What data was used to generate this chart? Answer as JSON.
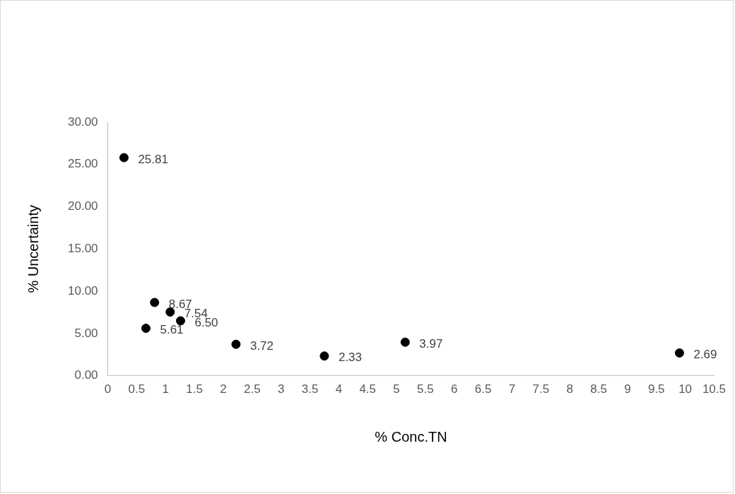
{
  "chart_data": {
    "type": "scatter",
    "xlabel": "% Conc.TN",
    "ylabel": "% Uncertainty",
    "x": [
      0.28,
      0.81,
      0.66,
      1.08,
      1.26,
      2.22,
      3.75,
      5.15,
      9.9
    ],
    "values": [
      25.81,
      8.67,
      5.61,
      7.54,
      6.5,
      3.72,
      2.33,
      3.97,
      2.69
    ],
    "value_labels": [
      "25.81",
      "8.67",
      "5.61",
      "7.54",
      "6.50",
      "3.72",
      "2.33",
      "3.97",
      "2.69"
    ],
    "color": "#000000",
    "marker": "circle",
    "xlim": [
      0,
      10.5
    ],
    "xticks": [
      0,
      0.5,
      1,
      1.5,
      2,
      2.5,
      3,
      3.5,
      4,
      4.5,
      5,
      5.5,
      6,
      6.5,
      7,
      7.5,
      8,
      8.5,
      9,
      9.5,
      10,
      10.5
    ],
    "ylim": [
      0,
      30
    ],
    "yticks": [
      {
        "value": 0,
        "label": "0.00"
      },
      {
        "value": 5,
        "label": "5.00"
      },
      {
        "value": 10,
        "label": "10.00"
      },
      {
        "value": 15,
        "label": "15.00"
      },
      {
        "value": 20,
        "label": "20.00"
      },
      {
        "value": 25,
        "label": "25.00"
      },
      {
        "value": 30,
        "label": "30.00"
      }
    ],
    "grid": false,
    "legend": false
  }
}
